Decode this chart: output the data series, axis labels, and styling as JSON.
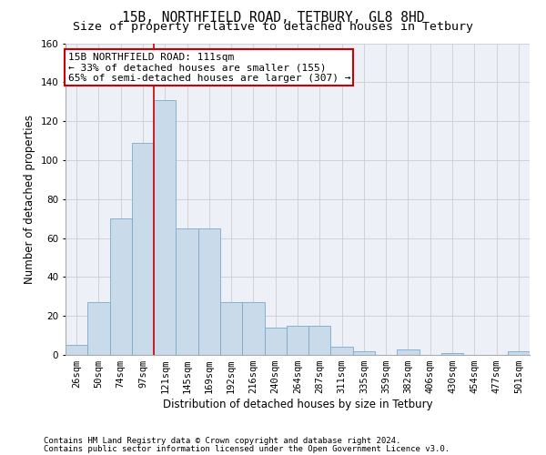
{
  "title1": "15B, NORTHFIELD ROAD, TETBURY, GL8 8HD",
  "title2": "Size of property relative to detached houses in Tetbury",
  "xlabel": "Distribution of detached houses by size in Tetbury",
  "ylabel": "Number of detached properties",
  "footer1": "Contains HM Land Registry data © Crown copyright and database right 2024.",
  "footer2": "Contains public sector information licensed under the Open Government Licence v3.0.",
  "bar_labels": [
    "26sqm",
    "50sqm",
    "74sqm",
    "97sqm",
    "121sqm",
    "145sqm",
    "169sqm",
    "192sqm",
    "216sqm",
    "240sqm",
    "264sqm",
    "287sqm",
    "311sqm",
    "335sqm",
    "359sqm",
    "382sqm",
    "406sqm",
    "430sqm",
    "454sqm",
    "477sqm",
    "501sqm"
  ],
  "bar_heights": [
    5,
    27,
    70,
    109,
    131,
    65,
    65,
    27,
    27,
    14,
    15,
    15,
    4,
    2,
    0,
    3,
    0,
    1,
    0,
    0,
    2
  ],
  "bar_color": "#c9daea",
  "bar_edge_color": "#7aaac8",
  "annotation_text_line1": "15B NORTHFIELD ROAD: 111sqm",
  "annotation_text_line2": "← 33% of detached houses are smaller (155)",
  "annotation_text_line3": "65% of semi-detached houses are larger (307) →",
  "annotation_box_facecolor": "#ffffff",
  "annotation_box_edgecolor": "#cc0000",
  "vline_color": "#cc0000",
  "vline_x_index": 3.5,
  "ylim": [
    0,
    160
  ],
  "yticks": [
    0,
    20,
    40,
    60,
    80,
    100,
    120,
    140,
    160
  ],
  "grid_color": "#cccccc",
  "bg_color": "#edf1f7",
  "title1_fontsize": 10.5,
  "title2_fontsize": 9.5,
  "xlabel_fontsize": 8.5,
  "ylabel_fontsize": 8.5,
  "tick_fontsize": 7.5,
  "annotation_fontsize": 8,
  "footer_fontsize": 6.5
}
